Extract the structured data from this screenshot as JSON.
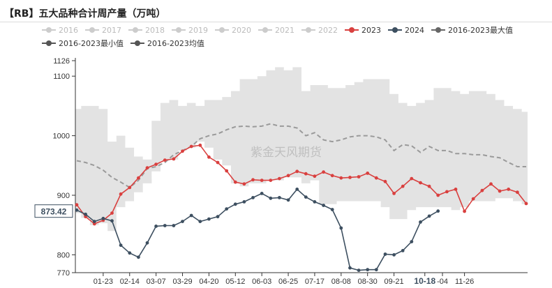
{
  "title": "【RB】五大品种合计周产量（万吨）",
  "watermark": "紫金天风期货",
  "colors": {
    "range_fill": "#e3e3e3",
    "avg_line": "#9a9a9a",
    "y2023": "#d9403f",
    "y2024": "#3d4f60",
    "legend_inactive": "#cccccc",
    "legend_max": "#666666",
    "legend_min": "#555555",
    "legend_avg": "#555555",
    "axis_text": "#333333",
    "axis_line": "#333333",
    "label_box_border": "#3d4f60"
  },
  "chart_data": {
    "type": "line",
    "title": "【RB】五大品种合计周产量（万吨）",
    "xlabel": "",
    "ylabel": "",
    "ylim": [
      770,
      1126
    ],
    "yticks": [
      770,
      800,
      900,
      1000,
      1100,
      1126
    ],
    "x_tick_labels": [
      "01-23",
      "02-14",
      "03-07",
      "03-29",
      "04-20",
      "05-12",
      "06-03",
      "06-25",
      "07-17",
      "08-08",
      "08-30",
      "09-21",
      "10-18",
      "-04",
      "11-26"
    ],
    "x_tick_weeks": [
      3,
      6,
      9,
      12,
      15,
      18,
      21,
      24,
      27,
      30,
      33,
      36,
      39.5,
      41.5,
      44
    ],
    "highlight_label": "10-18",
    "current_value_label": "873.42",
    "grid": false,
    "legend_position": "top",
    "legend": [
      {
        "name": "2016",
        "active": false
      },
      {
        "name": "2017",
        "active": false
      },
      {
        "name": "2018",
        "active": false
      },
      {
        "name": "2019",
        "active": false
      },
      {
        "name": "2020",
        "active": false
      },
      {
        "name": "2021",
        "active": false
      },
      {
        "name": "2022",
        "active": false
      },
      {
        "name": "2023",
        "active": true
      },
      {
        "name": "2024",
        "active": true
      },
      {
        "name": "2016-2023最大值",
        "active": true
      },
      {
        "name": "2016-2023最小值",
        "active": true
      },
      {
        "name": "2016-2023均值",
        "active": true
      }
    ],
    "series": [
      {
        "name": "2016-2023最大值",
        "values": [
          1045,
          1050,
          1050,
          1045,
          990,
          1000,
          980,
          965,
          960,
          1025,
          1055,
          1060,
          1050,
          1055,
          1050,
          1060,
          1060,
          1065,
          1075,
          1095,
          1095,
          1100,
          1110,
          1115,
          1110,
          1115,
          1075,
          1085,
          1085,
          1080,
          1080,
          1085,
          1090,
          1095,
          1095,
          1095,
          1070,
          1055,
          1050,
          1055,
          1060,
          1080,
          1080,
          1075,
          1070,
          1075,
          1075,
          1070,
          1060,
          1050,
          1045,
          1040
        ]
      },
      {
        "name": "2016-2023最小值",
        "values": [
          870,
          862,
          850,
          853,
          840,
          880,
          890,
          905,
          920,
          940,
          958,
          960,
          975,
          980,
          990,
          980,
          960,
          950,
          920,
          915,
          920,
          920,
          925,
          925,
          930,
          930,
          920,
          925,
          885,
          885,
          890,
          890,
          890,
          890,
          890,
          880,
          860,
          860,
          875,
          880,
          880,
          880,
          880,
          875,
          880,
          890,
          890,
          890,
          895,
          895,
          890,
          885
        ]
      },
      {
        "name": "2016-2023均值",
        "values": [
          958,
          955,
          950,
          942,
          930,
          922,
          913,
          925,
          945,
          948,
          955,
          968,
          975,
          982,
          995,
          1000,
          1003,
          1010,
          1015,
          1016,
          1015,
          1016,
          1020,
          1016,
          1016,
          1013,
          1000,
          1005,
          993,
          990,
          993,
          998,
          1000,
          1000,
          998,
          993,
          975,
          985,
          983,
          972,
          982,
          975,
          975,
          970,
          970,
          968,
          968,
          965,
          963,
          955,
          948,
          948
        ]
      },
      {
        "name": "2023",
        "values": [
          884,
          864,
          852,
          858,
          870,
          902,
          913,
          929,
          946,
          952,
          959,
          961,
          974,
          982,
          984,
          964,
          955,
          941,
          922,
          919,
          926,
          925,
          925,
          928,
          933,
          940,
          936,
          932,
          939,
          933,
          929,
          930,
          931,
          937,
          929,
          923,
          903,
          915,
          928,
          921,
          915,
          900,
          906,
          910,
          873,
          894,
          908,
          919,
          907,
          910,
          905,
          886
        ]
      },
      {
        "name": "2024",
        "values": [
          875,
          868,
          856,
          861,
          857,
          816,
          803,
          796,
          820,
          848,
          849,
          849,
          856,
          866,
          856,
          860,
          864,
          877,
          885,
          889,
          896,
          903,
          895,
          896,
          892,
          910,
          897,
          889,
          883,
          876,
          845,
          778,
          774,
          775,
          775,
          801,
          800,
          807,
          822,
          855,
          865,
          873.42
        ]
      }
    ]
  }
}
